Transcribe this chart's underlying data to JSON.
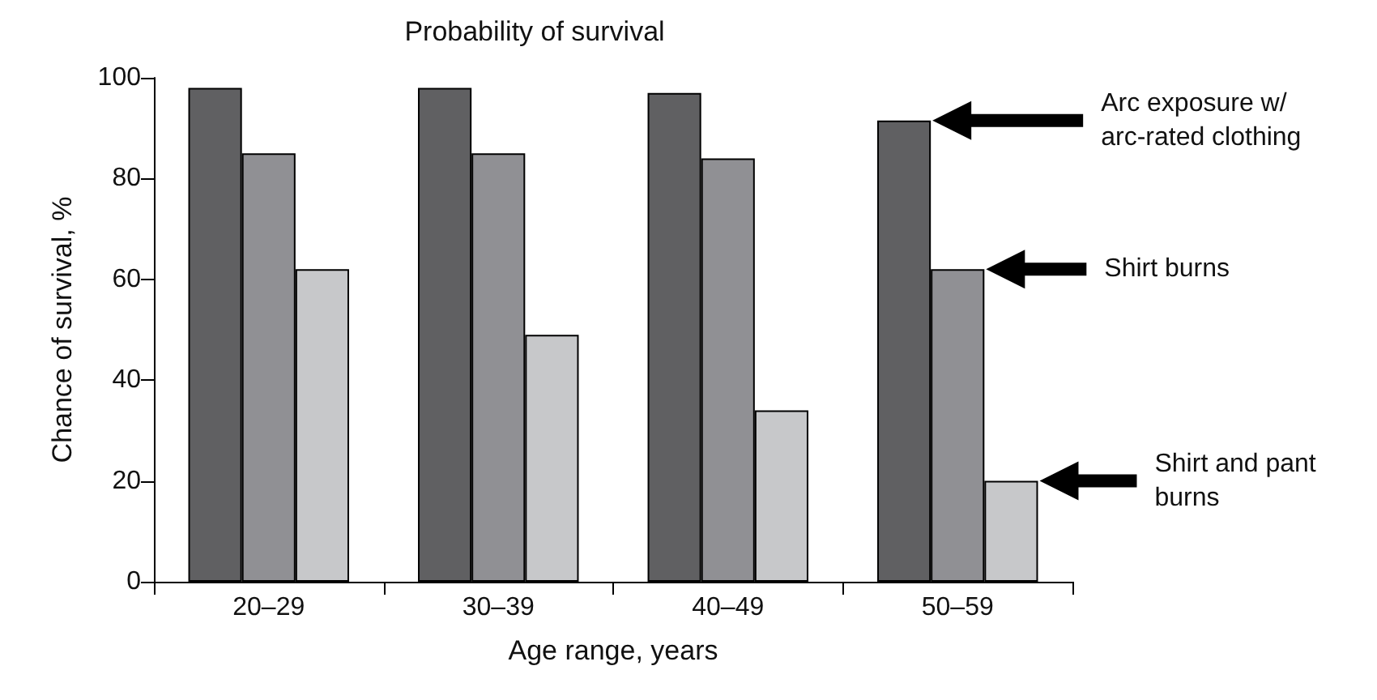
{
  "chart_data": {
    "type": "bar",
    "title": "Probability of survival",
    "xlabel": "Age range, years",
    "ylabel": "Chance of survival, %",
    "categories": [
      "20–29",
      "30–39",
      "40–49",
      "50–59"
    ],
    "series": [
      {
        "name": "Arc exposure w/arc-rated clothing",
        "color": "#606062",
        "values": [
          98,
          98,
          97,
          91.5
        ]
      },
      {
        "name": "Shirt burns",
        "color": "#909094",
        "values": [
          85,
          85,
          84,
          62
        ]
      },
      {
        "name": "Shirt and pant burns",
        "color": "#c7c8ca",
        "values": [
          62,
          49,
          34,
          20
        ]
      }
    ],
    "ylim": [
      0,
      100
    ],
    "yticks": [
      0,
      20,
      40,
      60,
      80,
      100
    ]
  }
}
